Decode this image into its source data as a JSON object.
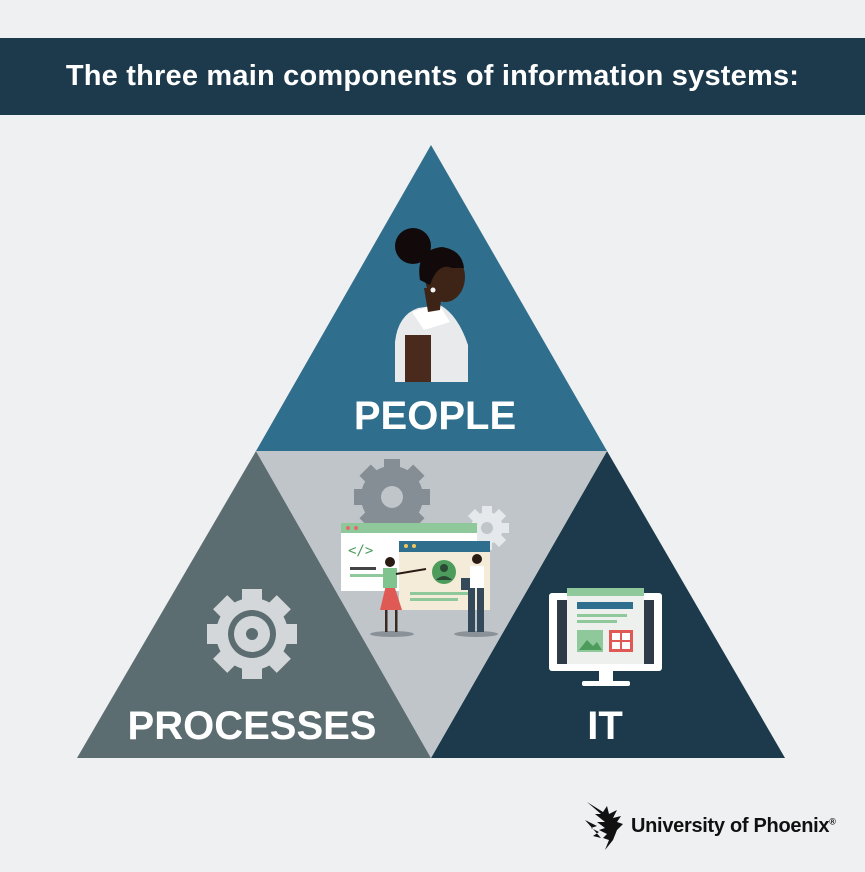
{
  "title": "The three main components of information systems:",
  "segments": {
    "people": "PEOPLE",
    "processes": "PROCESSES",
    "it": "IT"
  },
  "colors": {
    "background": "#eff0f1",
    "banner": "#1c3a4b",
    "people": "#2f6e8c",
    "processes": "#5c6d72",
    "it": "#1c3a4b",
    "center": "#c0c5c9"
  },
  "logo": {
    "text": "University of Phoenix",
    "mark": "®",
    "icon": "phoenix-bird-icon"
  }
}
